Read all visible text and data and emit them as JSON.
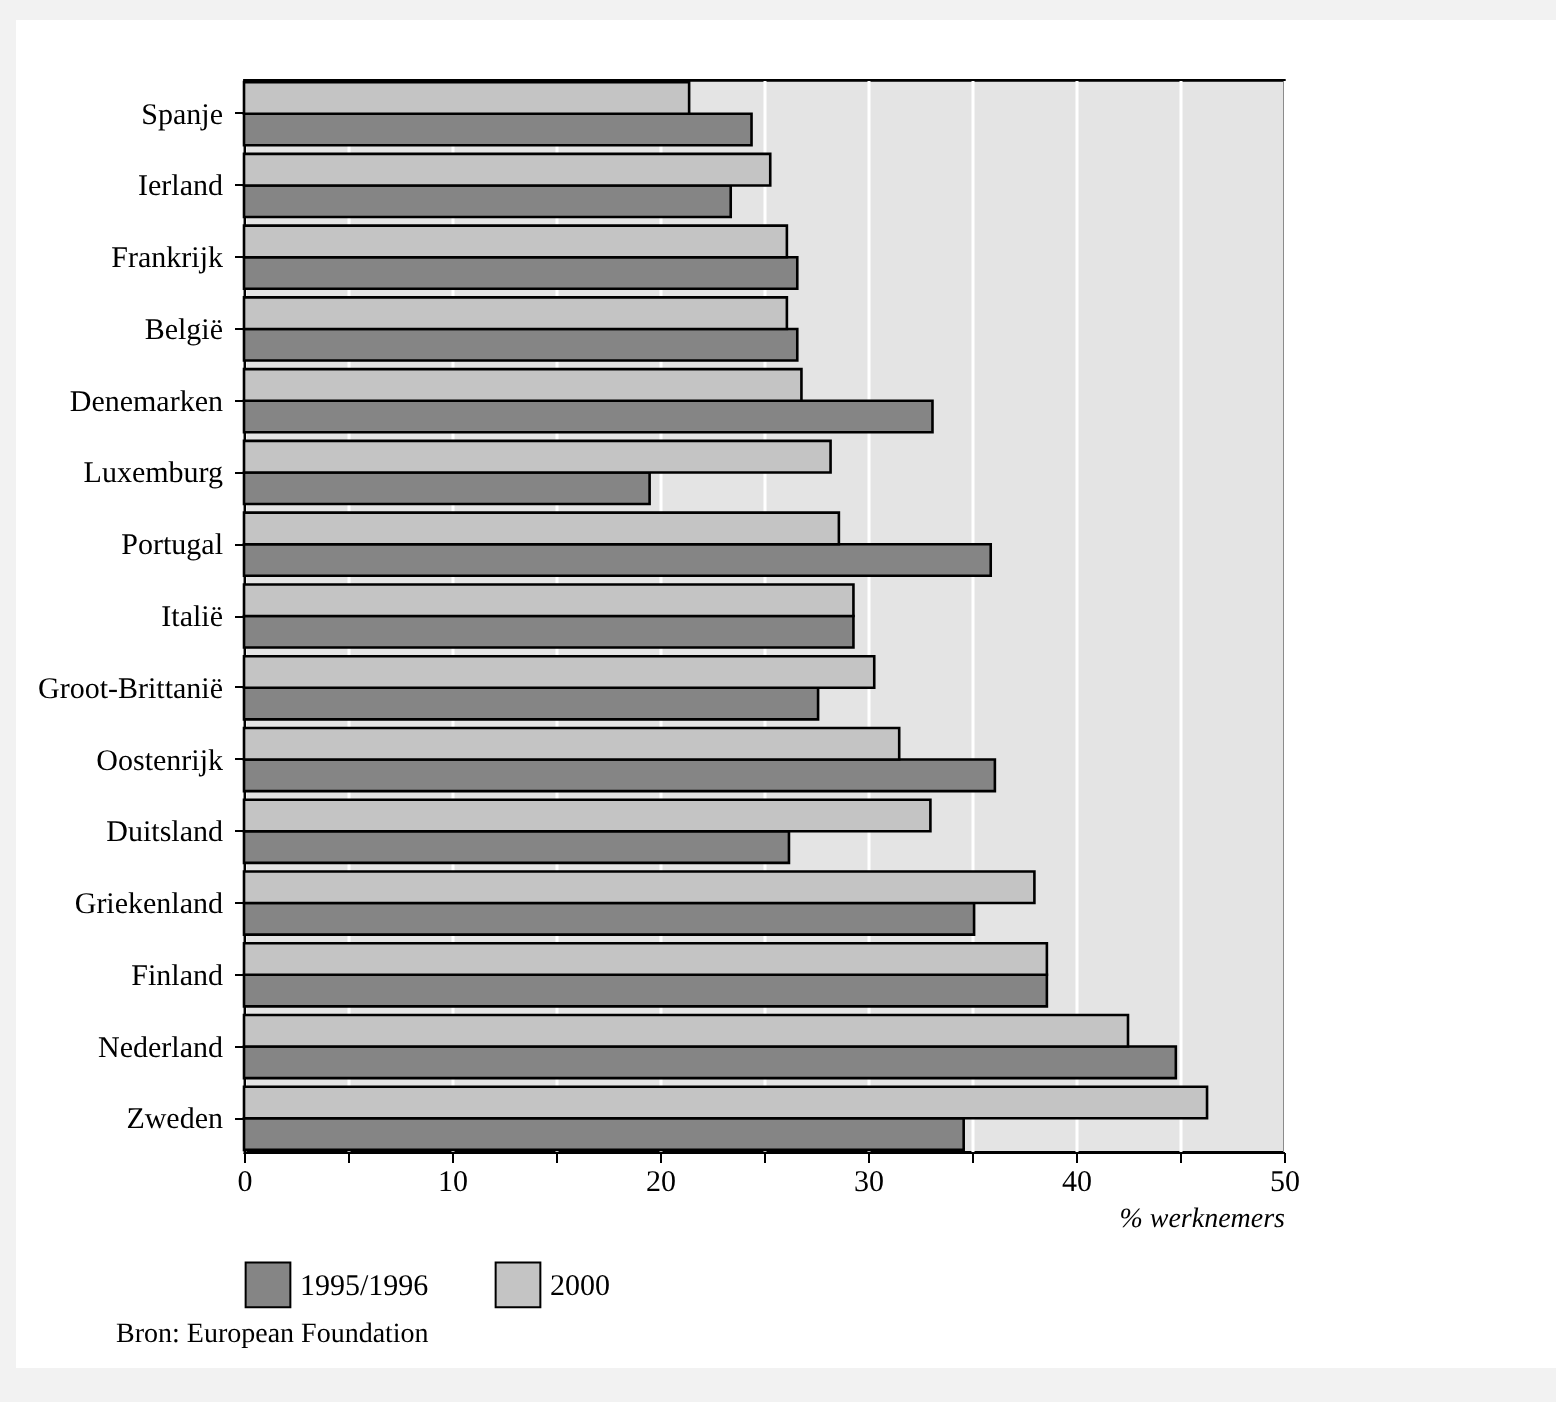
{
  "chart_data": {
    "type": "bar",
    "orientation": "horizontal",
    "xlabel": "% werknemers",
    "categories": [
      "Spanje",
      "Ierland",
      "Frankrijk",
      "België",
      "Denemarken",
      "Luxemburg",
      "Portugal",
      "Italië",
      "Groot-Brittanië",
      "Oostenrijk",
      "Duitsland",
      "Griekenland",
      "Finland",
      "Nederland",
      "Zweden"
    ],
    "series": [
      {
        "name": "1995/1996",
        "color": "#858585",
        "values": [
          24.4,
          23.4,
          26.6,
          26.6,
          33.1,
          19.5,
          35.9,
          29.3,
          27.6,
          36.1,
          26.2,
          35.1,
          38.6,
          44.8,
          34.6
        ]
      },
      {
        "name": "2000",
        "color": "#c4c4c4",
        "values": [
          21.4,
          25.3,
          26.1,
          26.1,
          26.8,
          28.2,
          28.6,
          29.3,
          30.3,
          31.5,
          33.0,
          38.0,
          38.6,
          42.5,
          46.3
        ]
      }
    ],
    "xlim": [
      0,
      50
    ],
    "xticks": [
      0,
      {
        "value": 5,
        "label": null
      },
      10,
      {
        "value": 15,
        "label": null
      },
      20,
      {
        "value": 25,
        "label": null
      },
      30,
      {
        "value": 35,
        "label": null
      },
      40,
      {
        "value": 45,
        "label": null
      },
      50
    ],
    "grid": "x",
    "legend": "bottom left",
    "annotations": [
      "Bron: European Foundation"
    ]
  }
}
